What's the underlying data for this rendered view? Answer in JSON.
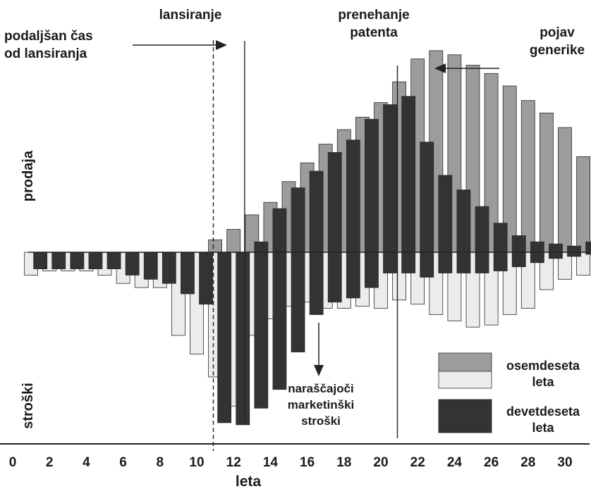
{
  "chart_data": {
    "type": "bar",
    "title": "",
    "xlabel": "leta",
    "ylabel_top": "prodaja",
    "ylabel_bottom": "stroški",
    "x_ticks": [
      "0",
      "2",
      "4",
      "6",
      "8",
      "10",
      "12",
      "14",
      "16",
      "18",
      "20",
      "22",
      "24",
      "26",
      "28",
      "30"
    ],
    "xlim": [
      0,
      32
    ],
    "ylim": [
      -100,
      100
    ],
    "colors": {
      "eighties_sales": "#9c9c9c",
      "eighties_costs": "#ececec",
      "nineties": "#333333"
    },
    "series": [
      {
        "name": "osemdeseta leta",
        "x": [
          1,
          2,
          3,
          4,
          5,
          6,
          7,
          8,
          9,
          10,
          11,
          12,
          13,
          14,
          15,
          16,
          17,
          18,
          19,
          20,
          21,
          22,
          23,
          24,
          25,
          26,
          27,
          28,
          29,
          30,
          31
        ],
        "sales": [
          0,
          0,
          0,
          0,
          0,
          0,
          0,
          0,
          0,
          0,
          6,
          11,
          18,
          24,
          34,
          43,
          52,
          59,
          65,
          72,
          82,
          93,
          97,
          95,
          90,
          86,
          80,
          73,
          67,
          60,
          46
        ],
        "costs": [
          -11,
          -9,
          -9,
          -9,
          -11,
          -15,
          -17,
          -17,
          -40,
          -49,
          -60,
          -74,
          -40,
          -32,
          -26,
          -24,
          -27,
          -27,
          -26,
          -27,
          -23,
          -25,
          -30,
          -33,
          -36,
          -35,
          -30,
          -27,
          -18,
          -13,
          -11
        ]
      },
      {
        "name": "devetdeseta leta",
        "x": [
          1.5,
          2.5,
          3.5,
          4.5,
          5.5,
          6.5,
          7.5,
          8.5,
          9.5,
          10.5,
          11.5,
          12.5,
          13.5,
          14.5,
          15.5,
          16.5,
          17.5,
          18.5,
          19.5,
          20.5,
          21.5,
          22.5,
          23.5,
          24.5,
          25.5,
          26.5,
          27.5,
          28.5,
          29.5,
          30.5,
          31.5
        ],
        "sales": [
          0,
          0,
          0,
          0,
          0,
          0,
          0,
          0,
          0,
          0,
          0,
          0,
          5,
          21,
          31,
          39,
          48,
          54,
          64,
          71,
          75,
          53,
          37,
          30,
          22,
          14,
          8,
          5,
          4,
          3,
          5
        ],
        "costs": [
          -8,
          -8,
          -8,
          -8,
          -8,
          -11,
          -13,
          -15,
          -20,
          -25,
          -82,
          -83,
          -75,
          -66,
          -48,
          -30,
          -24,
          -22,
          -17,
          -10,
          -10,
          -12,
          -10,
          -10,
          -10,
          -9,
          -7,
          -5,
          -3,
          -2,
          -1
        ]
      }
    ],
    "reference_lines": [
      {
        "label": "lansiranje",
        "x": 12.6,
        "style": "solid"
      },
      {
        "label": "prenehanje patenta",
        "x": 20.9,
        "style": "solid"
      },
      {
        "label": "podaljšan čas od lansiranja",
        "x": 10.9,
        "style": "dashed"
      }
    ],
    "annotations": {
      "lansiranje": "lansiranje",
      "prenehanje_line1": "prenehanje",
      "prenehanje_line2": "patenta",
      "podaljsan_line1": "podaljšan čas",
      "podaljsan_line2": "od lansiranja",
      "pojav_line1": "pojav",
      "pojav_line2": "generike",
      "narascajoci_line1": "naraščajoči",
      "narascajoci_line2": "marketinški",
      "narascajoci_line3": "stroški"
    },
    "legend": {
      "position": "bottom-right",
      "items": [
        {
          "label_line1": "osemdeseta",
          "label_line2": "leta"
        },
        {
          "label_line1": "devetdeseta",
          "label_line2": "leta"
        }
      ]
    },
    "grid": false
  }
}
